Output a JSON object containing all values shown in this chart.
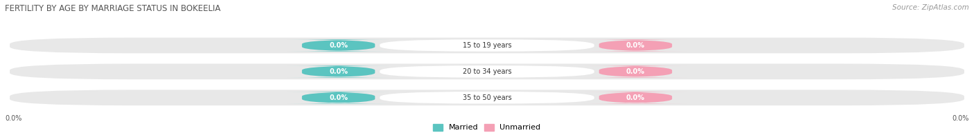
{
  "title": "FERTILITY BY AGE BY MARRIAGE STATUS IN BOKEELIA",
  "source": "Source: ZipAtlas.com",
  "age_groups": [
    "15 to 19 years",
    "20 to 34 years",
    "35 to 50 years"
  ],
  "married_values": [
    "0.0%",
    "0.0%",
    "0.0%"
  ],
  "unmarried_values": [
    "0.0%",
    "0.0%",
    "0.0%"
  ],
  "married_color": "#5bc4c0",
  "unmarried_color": "#f4a0b5",
  "bar_bg_color": "#e8e8e8",
  "bg_color": "#ffffff",
  "title_color": "#555555",
  "source_color": "#999999",
  "axis_label_color": "#555555",
  "x_left_label": "0.0%",
  "x_right_label": "0.0%",
  "title_fontsize": 8.5,
  "source_fontsize": 7.5,
  "bar_label_fontsize": 7,
  "age_label_fontsize": 7,
  "legend_fontsize": 8,
  "axis_tick_fontsize": 7,
  "figsize": [
    14.06,
    1.96
  ],
  "dpi": 100
}
